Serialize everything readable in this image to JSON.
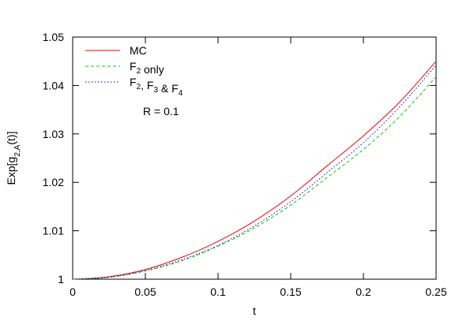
{
  "chart_data": {
    "type": "line",
    "xlabel": "t",
    "ylabel": {
      "base": "Exp[g",
      "sub": "2,A",
      "tail": "(t)]"
    },
    "xlim": [
      0,
      0.25
    ],
    "ylim": [
      1,
      1.05
    ],
    "x_ticks": [
      0,
      0.05,
      0.1,
      0.15,
      0.2,
      0.25
    ],
    "x_tick_labels": [
      "0",
      "0.05",
      "0.1",
      "0.15",
      "0.2",
      "0.25"
    ],
    "y_ticks": [
      1,
      1.01,
      1.02,
      1.03,
      1.04,
      1.05
    ],
    "y_tick_labels": [
      "1",
      "1.01",
      "1.02",
      "1.03",
      "1.04",
      "1.05"
    ],
    "grid": false,
    "legend_position": "top-left",
    "annotation": "R = 0.1",
    "x": [
      0,
      0.025,
      0.05,
      0.075,
      0.1,
      0.125,
      0.15,
      0.175,
      0.2,
      0.225,
      0.25
    ],
    "series": [
      {
        "name": "MC",
        "legend_parts": [
          [
            "MC",
            ""
          ]
        ],
        "color": "#ff0000",
        "dash": "",
        "values": [
          1.0,
          1.0005,
          1.002,
          1.0045,
          1.0078,
          1.012,
          1.0172,
          1.0234,
          1.0296,
          1.0366,
          1.045
        ]
      },
      {
        "name": "F2 only",
        "legend_parts": [
          [
            "F",
            "2"
          ],
          [
            " only",
            ""
          ]
        ],
        "color": "#00cc00",
        "dash": "4,3",
        "values": [
          1.0,
          1.0004,
          1.0017,
          1.0038,
          1.0068,
          1.0106,
          1.0153,
          1.021,
          1.0268,
          1.0336,
          1.0418
        ]
      },
      {
        "name": "F2, F3 & F4",
        "legend_parts": [
          [
            "F",
            "2"
          ],
          [
            ", F",
            "3"
          ],
          [
            " & F",
            "4"
          ]
        ],
        "color": "#0000ff",
        "dash": "1.5,2.5",
        "values": [
          1.0,
          1.0004,
          1.0018,
          1.004,
          1.007,
          1.011,
          1.016,
          1.022,
          1.0282,
          1.0356,
          1.0442
        ]
      }
    ]
  }
}
